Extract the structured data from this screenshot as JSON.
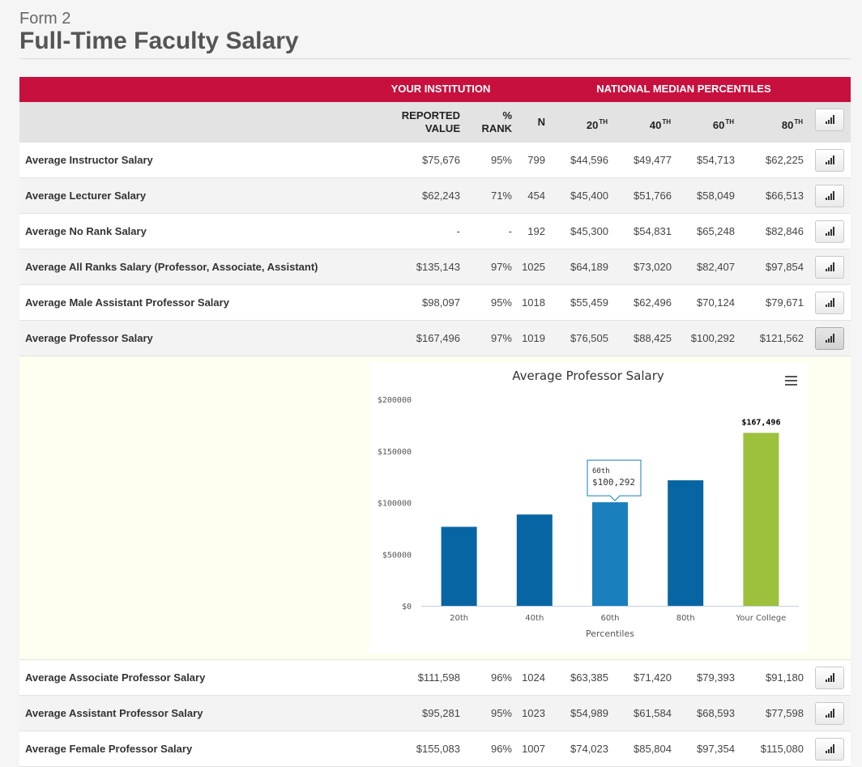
{
  "header": {
    "form_label": "Form 2",
    "title": "Full-Time Faculty Salary"
  },
  "table": {
    "groups": {
      "institution": "YOUR INSTITUTION",
      "national": "NATIONAL MEDIAN PERCENTILES"
    },
    "columns": {
      "reported_line1": "REPORTED",
      "reported_line2": "VALUE",
      "rank_line1": "%",
      "rank_line2": "RANK",
      "n": "N",
      "p20": "20",
      "p40": "40",
      "p60": "60",
      "p80": "80",
      "th": "TH"
    },
    "rows": [
      {
        "label": "Average Instructor Salary",
        "reported": "$75,676",
        "rank": "95%",
        "n": "799",
        "p20": "$44,596",
        "p40": "$49,477",
        "p60": "$54,713",
        "p80": "$62,225"
      },
      {
        "label": "Average Lecturer Salary",
        "reported": "$62,243",
        "rank": "71%",
        "n": "454",
        "p20": "$45,400",
        "p40": "$51,766",
        "p60": "$58,049",
        "p80": "$66,513"
      },
      {
        "label": "Average No Rank Salary",
        "reported": "-",
        "rank": "-",
        "n": "192",
        "p20": "$45,300",
        "p40": "$54,831",
        "p60": "$65,248",
        "p80": "$82,846"
      },
      {
        "label": "Average All Ranks Salary (Professor, Associate, Assistant)",
        "reported": "$135,143",
        "rank": "97%",
        "n": "1025",
        "p20": "$64,189",
        "p40": "$73,020",
        "p60": "$82,407",
        "p80": "$97,854"
      },
      {
        "label": "Average Male Assistant Professor Salary",
        "reported": "$98,097",
        "rank": "95%",
        "n": "1018",
        "p20": "$55,459",
        "p40": "$62,496",
        "p60": "$70,124",
        "p80": "$79,671"
      },
      {
        "label": "Average Professor Salary",
        "reported": "$167,496",
        "rank": "97%",
        "n": "1019",
        "p20": "$76,505",
        "p40": "$88,425",
        "p60": "$100,292",
        "p80": "$121,562"
      },
      {
        "label": "Average Associate Professor Salary",
        "reported": "$111,598",
        "rank": "96%",
        "n": "1024",
        "p20": "$63,385",
        "p40": "$71,420",
        "p60": "$79,393",
        "p80": "$91,180"
      },
      {
        "label": "Average Assistant Professor Salary",
        "reported": "$95,281",
        "rank": "95%",
        "n": "1023",
        "p20": "$54,989",
        "p40": "$61,584",
        "p60": "$68,593",
        "p80": "$77,598"
      },
      {
        "label": "Average Female Professor Salary",
        "reported": "$155,083",
        "rank": "96%",
        "n": "1007",
        "p20": "$74,023",
        "p40": "$85,804",
        "p60": "$97,354",
        "p80": "$115,080"
      }
    ]
  },
  "colors": {
    "brand_red": "#c8103e",
    "bar_blue": "#0865a3",
    "bar_highlight": "#1a7fbd",
    "bar_college": "#9dc03d"
  },
  "chart_data": {
    "type": "bar",
    "title": "Average Professor Salary",
    "categories": [
      "20th",
      "40th",
      "60th",
      "80th",
      "Your College"
    ],
    "values": [
      76505,
      88425,
      100292,
      121562,
      167496
    ],
    "ylim": [
      0,
      200000
    ],
    "yticks": [
      "$0",
      "$50000",
      "$100000",
      "$150000",
      "$200000"
    ],
    "xlabel": "Percentiles",
    "ylabel": "",
    "data_label": "$167,496",
    "tooltip": {
      "category": "60th",
      "value": "$100,292"
    },
    "legend": false
  }
}
